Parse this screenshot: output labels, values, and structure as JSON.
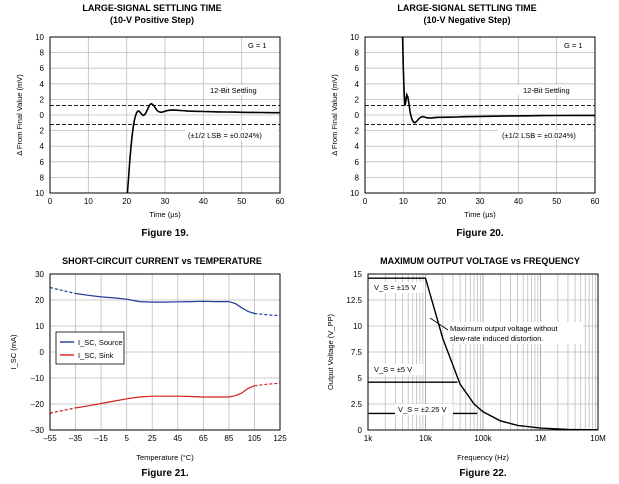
{
  "chart_data": [
    {
      "type": "line",
      "title": "LARGE-SIGNAL SETTLING TIME",
      "subtitle": "(10-V Positive Step)",
      "figure": "Figure 19.",
      "xlabel": "Time (µs)",
      "ylabel": "Δ From Final Value (mV)",
      "xlim": [
        0,
        60
      ],
      "ylim": [
        -10,
        10
      ],
      "xticks": [
        "0",
        "10",
        "20",
        "30",
        "40",
        "50",
        "60"
      ],
      "yticks": [
        "10",
        "8",
        "6",
        "4",
        "2",
        "0",
        "2",
        "4",
        "6",
        "8",
        "10"
      ],
      "gain_label": "G = 1",
      "settling_label": "12-Bit Settling",
      "lsb_label": "(±1/2 LSB = ±0.024%)",
      "band": [
        -1.22,
        1.22
      ],
      "series": [
        {
          "name": "settling",
          "x": [
            20.2,
            20.5,
            20.8,
            21.1,
            21.4,
            21.7,
            22.0,
            22.3,
            22.6,
            22.9,
            23.2,
            23.6,
            24.0,
            24.4,
            24.8,
            25.2,
            25.6,
            26.0,
            26.4,
            26.8,
            27.2,
            27.6,
            28.0,
            28.5,
            29.0,
            29.5,
            30.0,
            31.0,
            32.0,
            33.0,
            34.0,
            35.0,
            36.0,
            38.0,
            40.0,
            42.0,
            44.0,
            46.0,
            48.0,
            50.0,
            52.0,
            55.0,
            58.0,
            60.0
          ],
          "y": [
            -10,
            -8,
            -6,
            -4.2,
            -2.8,
            -1.6,
            -0.7,
            -0.1,
            0.3,
            0.5,
            0.5,
            0.3,
            0.05,
            -0.05,
            0.1,
            0.45,
            0.9,
            1.3,
            1.45,
            1.35,
            1.1,
            0.8,
            0.55,
            0.4,
            0.35,
            0.4,
            0.5,
            0.6,
            0.65,
            0.62,
            0.58,
            0.55,
            0.5,
            0.48,
            0.45,
            0.42,
            0.4,
            0.38,
            0.37,
            0.35,
            0.33,
            0.32,
            0.3,
            0.3
          ]
        }
      ]
    },
    {
      "type": "line",
      "title": "LARGE-SIGNAL SETTLING TIME",
      "subtitle": "(10-V Negative Step)",
      "figure": "Figure 20.",
      "xlabel": "Time (µs)",
      "ylabel": "Δ From Final Value (mV)",
      "xlim": [
        0,
        60
      ],
      "ylim": [
        -10,
        10
      ],
      "xticks": [
        "0",
        "10",
        "20",
        "30",
        "40",
        "50",
        "60"
      ],
      "yticks": [
        "10",
        "8",
        "6",
        "4",
        "2",
        "0",
        "2",
        "4",
        "6",
        "8",
        "10"
      ],
      "gain_label": "G = 1",
      "settling_label": "12-Bit Settling",
      "lsb_label": "(±1/2 LSB = ±0.024%)",
      "band": [
        -1.22,
        1.22
      ],
      "series": [
        {
          "name": "settling",
          "x": [
            9.8,
            10.0,
            10.2,
            10.4,
            10.6,
            10.9,
            11.2,
            11.5,
            11.8,
            12.2,
            12.6,
            13.0,
            13.5,
            14.0,
            14.5,
            15.0,
            15.5,
            16.0,
            17.0,
            18.0,
            19.0,
            20.0,
            22.0,
            24.0,
            26.0,
            28.0,
            30.0,
            34.0,
            38.0,
            42.0,
            46.0,
            50.0,
            55.0,
            60.0
          ],
          "y": [
            10,
            6,
            3,
            1.2,
            1.6,
            2.6,
            2.3,
            1.3,
            0.3,
            -0.5,
            -0.9,
            -1.0,
            -0.8,
            -0.5,
            -0.3,
            -0.2,
            -0.25,
            -0.35,
            -0.4,
            -0.35,
            -0.3,
            -0.3,
            -0.28,
            -0.25,
            -0.22,
            -0.2,
            -0.18,
            -0.15,
            -0.12,
            -0.1,
            -0.08,
            -0.06,
            -0.05,
            -0.05
          ]
        }
      ]
    },
    {
      "type": "line",
      "title": "SHORT-CIRCUIT CURRENT vs TEMPERATURE",
      "figure": "Figure 21.",
      "xlabel": "Temperature (°C)",
      "ylabel": "I_SC (mA)",
      "xlim": [
        -55,
        125
      ],
      "ylim": [
        -30,
        30
      ],
      "xticks": [
        "–55",
        "–35",
        "–15",
        "5",
        "25",
        "45",
        "65",
        "85",
        "105",
        "125"
      ],
      "yticks": [
        "30",
        "20",
        "10",
        "0",
        "–10",
        "–20",
        "–30"
      ],
      "legend_source": "I_SC, Source",
      "legend_sink": "I_SC, Sink",
      "series": [
        {
          "name": "I_SC, Source",
          "color": "#1f3a9a",
          "x": [
            -55,
            -45,
            -35,
            -25,
            -15,
            -5,
            5,
            15,
            25,
            35,
            45,
            55,
            65,
            75,
            85,
            90,
            95,
            100,
            105,
            115,
            125
          ],
          "y": [
            24.8,
            23.6,
            22.5,
            21.8,
            21.2,
            20.8,
            20.3,
            19.4,
            19.2,
            19.2,
            19.3,
            19.4,
            19.5,
            19.4,
            19.4,
            18.6,
            17.0,
            15.6,
            14.8,
            14.3,
            14.0
          ],
          "dashed_x_max": -35,
          "dashed_x_min": 105
        },
        {
          "name": "I_SC, Sink",
          "color": "#d42020",
          "x": [
            -55,
            -45,
            -35,
            -25,
            -15,
            -5,
            5,
            15,
            25,
            35,
            45,
            55,
            65,
            75,
            85,
            90,
            95,
            100,
            105,
            115,
            125
          ],
          "y": [
            -23.5,
            -22.5,
            -21.5,
            -20.7,
            -19.8,
            -18.9,
            -18.0,
            -17.3,
            -17.0,
            -17.0,
            -17.0,
            -17.1,
            -17.3,
            -17.3,
            -17.3,
            -16.8,
            -15.8,
            -14.0,
            -13.0,
            -12.4,
            -12.0
          ],
          "dashed_x_max": -35,
          "dashed_x_min": 105
        }
      ]
    },
    {
      "type": "line",
      "title": "MAXIMUM OUTPUT VOLTAGE vs FREQUENCY",
      "figure": "Figure 22.",
      "xlabel": "Frequency (Hz)",
      "ylabel": "Output Voltage (V_PP)",
      "xscale": "log",
      "xlim": [
        1000,
        10000000
      ],
      "ylim": [
        0,
        15
      ],
      "xticks": [
        "1k",
        "10k",
        "100k",
        "1M",
        "10M"
      ],
      "yticks": [
        "15",
        "12.5",
        "10",
        "7.5",
        "5",
        "2.5",
        "0"
      ],
      "vs15_label": "V_S = ±15 V",
      "vs5_label": "V_S = ±5 V",
      "vs225_label": "V_S = ±2.25 V",
      "annotation_line1": "Maximum output voltage without",
      "annotation_line2": "slew-rate induced distortion.",
      "series": [
        {
          "name": "V_S = ±15 V",
          "x": [
            1000,
            10000,
            20000,
            40000,
            70000,
            100000,
            200000,
            400000,
            1000000,
            3000000,
            10000000
          ],
          "y": [
            14.6,
            14.6,
            8.8,
            4.4,
            2.5,
            1.75,
            0.88,
            0.44,
            0.18,
            0.06,
            0.02
          ]
        },
        {
          "name": "V_S = ±5 V",
          "x": [
            1000,
            36000
          ],
          "y": [
            4.6,
            4.6
          ]
        },
        {
          "name": "V_S = ±2.25 V",
          "x": [
            1000,
            80000
          ],
          "y": [
            1.6,
            1.6
          ]
        }
      ]
    }
  ]
}
